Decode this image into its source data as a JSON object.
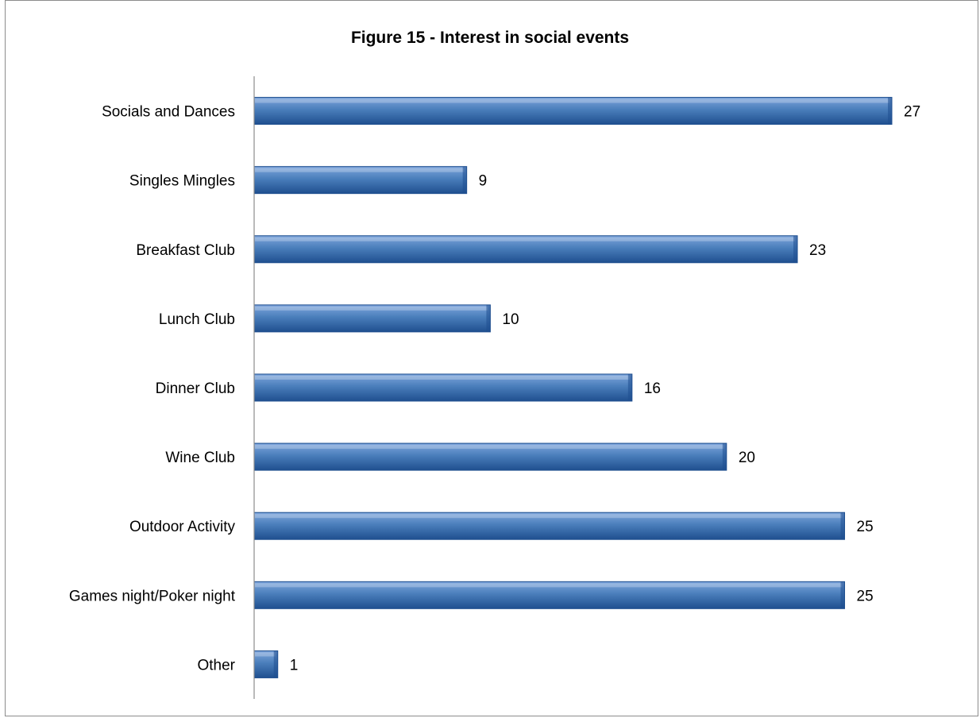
{
  "chart_data": {
    "type": "bar",
    "orientation": "horizontal",
    "title": "Figure 15 - Interest in social events",
    "categories": [
      "Socials and Dances",
      "Singles Mingles",
      "Breakfast Club",
      "Lunch Club",
      "Dinner Club",
      "Wine Club",
      "Outdoor Activity",
      "Games night/Poker night",
      "Other"
    ],
    "values": [
      27,
      9,
      23,
      10,
      16,
      20,
      25,
      25,
      1
    ],
    "xlim": [
      0,
      27
    ],
    "xlabel": "",
    "ylabel": "",
    "grid": false,
    "legend": "none",
    "data_labels": true,
    "bar_color": "#4a7ebb",
    "bar_color_light": "#7fa6dc",
    "bar_color_dark": "#1f4f8f"
  }
}
